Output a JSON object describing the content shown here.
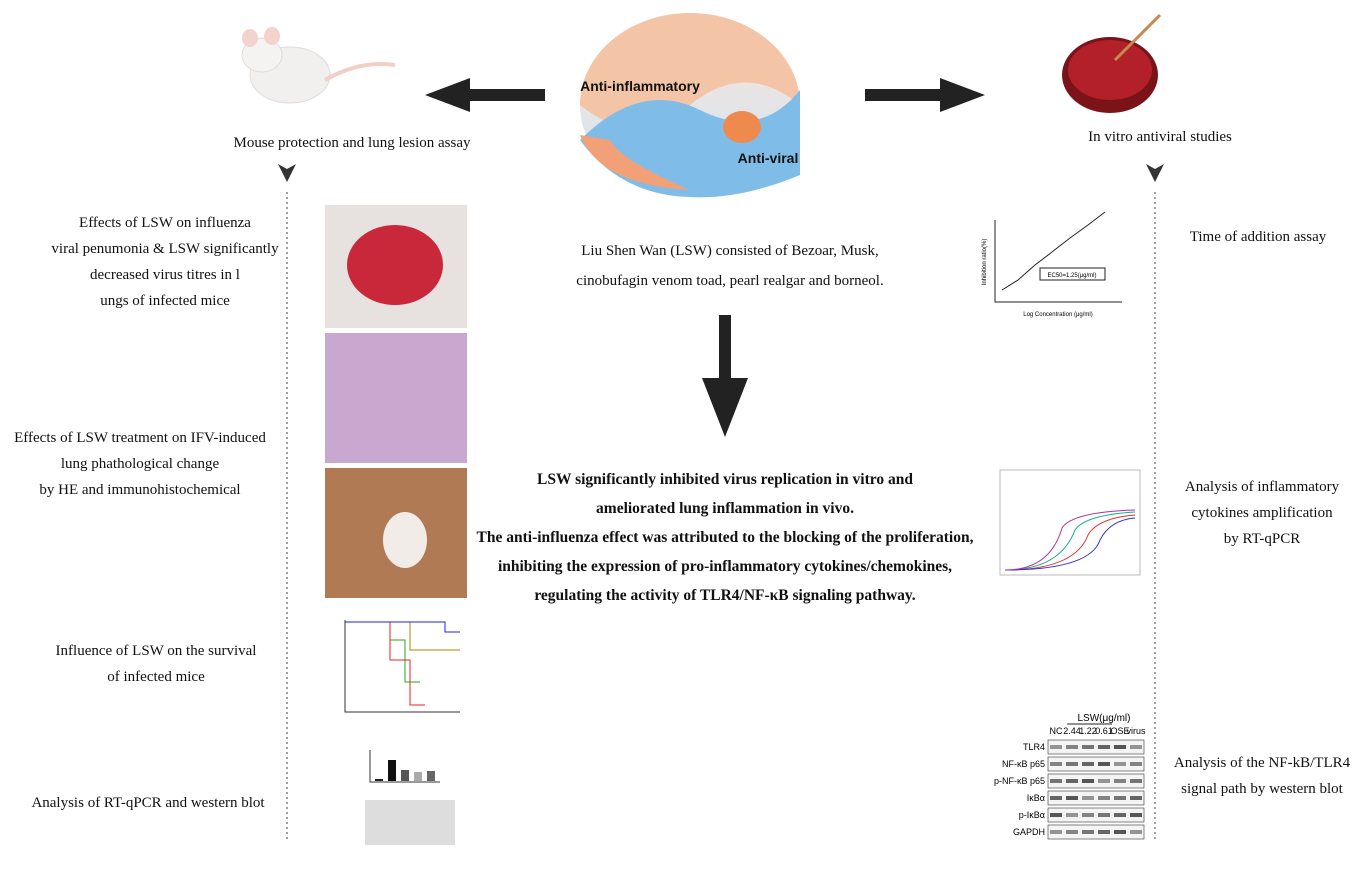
{
  "center": {
    "yin_yang": {
      "top_label": "Anti-inflammatory",
      "bottom_label": "Anti-viral"
    },
    "composition": [
      "Liu Shen Wan (LSW) consisted of Bezoar, Musk,",
      "cinobufagin venom toad, pearl realgar and borneol."
    ],
    "conclusion": [
      "LSW significantly inhibited virus replication in vitro and",
      "ameliorated lung inflammation in vivo.",
      "The anti-influenza effect was attributed to the blocking of the proliferation,",
      "inhibiting the expression of pro-inflammatory cytokines/chemokines,",
      "regulating the activity of TLR4/NF-κB signaling pathway."
    ]
  },
  "left_panel": {
    "title": "Mouse protection and lung lesion assay",
    "items": [
      {
        "lines": [
          "Effects of  LSW on influenza",
          "viral penumonia & LSW significantly",
          "decreased virus titres in l",
          "ungs of infected mice"
        ]
      },
      {
        "lines": [
          "Effects of LSW treatment on IFV-induced",
          "lung phathological change",
          "by HE and immunohistochemical"
        ]
      },
      {
        "lines": [
          "Influence of LSW on the survival",
          "of infected mice"
        ]
      },
      {
        "lines": [
          "Analysis of  RT-qPCR and western blot"
        ]
      }
    ]
  },
  "right_panel": {
    "title": "In vitro antiviral studies",
    "items": [
      {
        "lines": [
          "Time of addition assay"
        ]
      },
      {
        "lines": [
          "Analysis of inflammatory",
          "cytokines  amplification",
          "by RT-qPCR"
        ]
      },
      {
        "lines": [
          "Analysis of the NF-kB/TLR4",
          "signal path by western blot"
        ]
      }
    ],
    "dose_response": {
      "y_label": "Inhibition ratio(%)",
      "x_label": "Log Concentration (μg/ml)",
      "ec50": "EC50=1.25(μg/ml)"
    },
    "western_blot": {
      "group_label": "LSW(μg/ml)",
      "lanes": [
        "NC",
        "2.44",
        "1.22",
        "0.61",
        "OSE",
        "virus"
      ],
      "rows": [
        "TLR4",
        "NF-κB p65",
        "p-NF-κB p65",
        "IκBα",
        "p-IκBα",
        "GAPDH"
      ]
    }
  }
}
